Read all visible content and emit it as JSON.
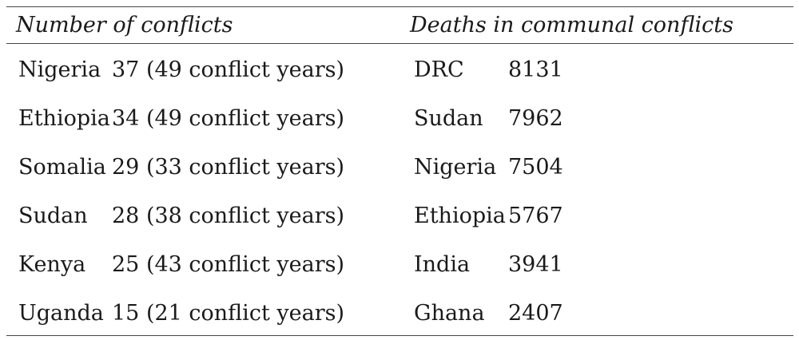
{
  "headers": {
    "left": "Number of conflicts",
    "right": "Deaths in communal conflicts"
  },
  "rows": [
    {
      "country": "Nigeria",
      "count": "37 (49 conflict years)",
      "country2": "DRC",
      "deaths": "8131"
    },
    {
      "country": "Ethiopia",
      "count": "34 (49 conflict years)",
      "country2": "Sudan",
      "deaths": "7962"
    },
    {
      "country": "Somalia",
      "count": "29 (33 conflict years)",
      "country2": "Nigeria",
      "deaths": "7504"
    },
    {
      "country": "Sudan",
      "count": "28 (38 conflict years)",
      "country2": "Ethiopia",
      "deaths": "5767"
    },
    {
      "country": "Kenya",
      "count": "25 (43 conflict years)",
      "country2": "India",
      "deaths": "3941"
    },
    {
      "country": "Uganda",
      "count": "15 (21 conflict years)",
      "country2": "Ghana",
      "deaths": "2407"
    }
  ]
}
